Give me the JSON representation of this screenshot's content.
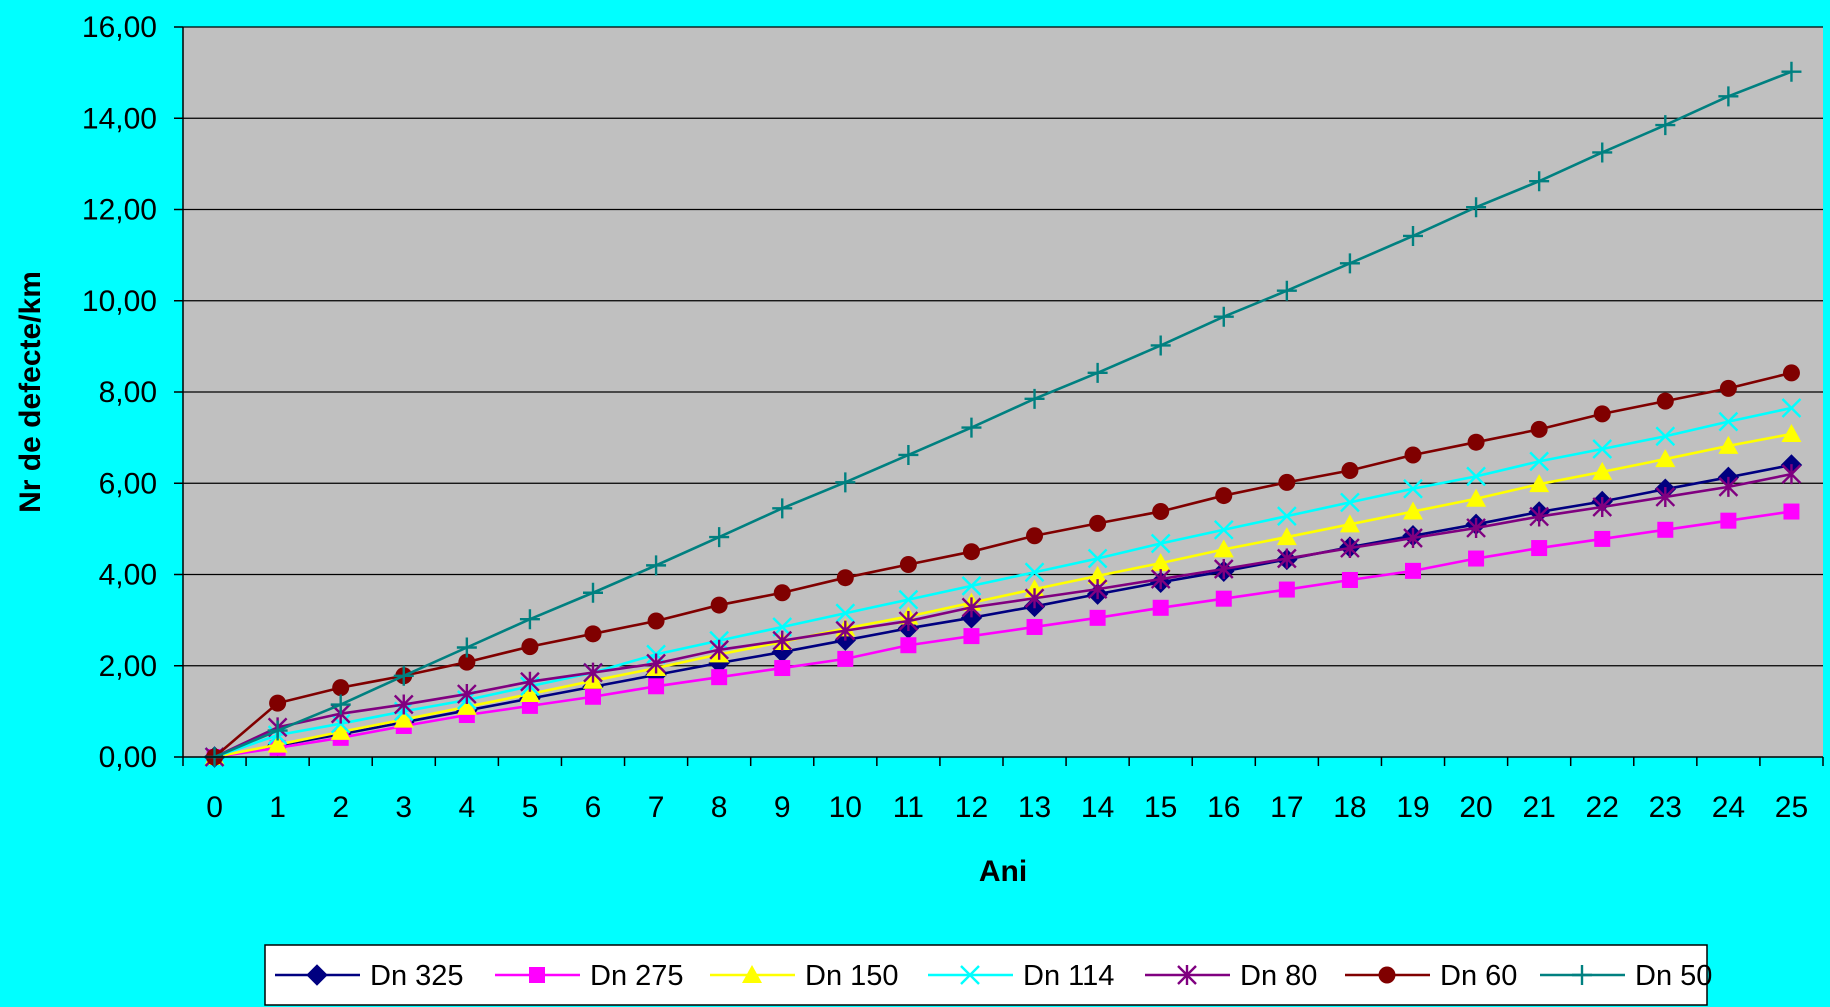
{
  "chart_data": {
    "type": "line",
    "title": "",
    "xlabel": "Ani",
    "ylabel": "Nr de defecte/km",
    "categories": [
      "0",
      "1",
      "2",
      "3",
      "4",
      "5",
      "6",
      "7",
      "8",
      "9",
      "10",
      "11",
      "12",
      "13",
      "14",
      "15",
      "16",
      "17",
      "18",
      "19",
      "20",
      "21",
      "22",
      "23",
      "24",
      "25"
    ],
    "ylim": [
      0,
      16
    ],
    "yticks": [
      "0,00",
      "2,00",
      "4,00",
      "6,00",
      "8,00",
      "10,00",
      "12,00",
      "14,00",
      "16,00"
    ],
    "grid": "horizontal",
    "legend_position": "bottom",
    "plot_background": "#C0C0C0",
    "page_background": "#00FFFF",
    "series": [
      {
        "name": "Dn 325",
        "color": "#000080",
        "marker": "diamond",
        "values": [
          0,
          0.25,
          0.5,
          0.76,
          1.02,
          1.28,
          1.54,
          1.8,
          2.06,
          2.3,
          2.56,
          2.82,
          3.05,
          3.3,
          3.57,
          3.83,
          4.07,
          4.33,
          4.6,
          4.85,
          5.1,
          5.37,
          5.6,
          5.87,
          6.13,
          6.4
        ]
      },
      {
        "name": "Dn 275",
        "color": "#FF00FF",
        "marker": "square",
        "values": [
          0,
          0.2,
          0.42,
          0.68,
          0.92,
          1.12,
          1.32,
          1.55,
          1.75,
          1.95,
          2.15,
          2.45,
          2.65,
          2.85,
          3.05,
          3.27,
          3.47,
          3.67,
          3.88,
          4.08,
          4.35,
          4.58,
          4.78,
          4.98,
          5.18,
          5.38
        ]
      },
      {
        "name": "Dn 150",
        "color": "#FFFF00",
        "marker": "triangle",
        "values": [
          0,
          0.27,
          0.55,
          0.82,
          1.1,
          1.38,
          1.67,
          1.95,
          2.25,
          2.52,
          2.82,
          3.08,
          3.38,
          3.68,
          3.97,
          4.25,
          4.55,
          4.82,
          5.1,
          5.38,
          5.66,
          5.98,
          6.25,
          6.53,
          6.82,
          7.08
        ]
      },
      {
        "name": "Dn 114",
        "color": "#00FFFF",
        "marker": "x",
        "values": [
          0,
          0.48,
          0.73,
          1.0,
          1.25,
          1.55,
          1.85,
          2.25,
          2.55,
          2.85,
          3.15,
          3.45,
          3.75,
          4.05,
          4.35,
          4.68,
          4.98,
          5.28,
          5.58,
          5.88,
          6.15,
          6.48,
          6.75,
          7.03,
          7.35,
          7.65
        ]
      },
      {
        "name": "Dn 80",
        "color": "#800080",
        "marker": "star",
        "values": [
          0,
          0.65,
          0.95,
          1.15,
          1.38,
          1.65,
          1.85,
          2.05,
          2.35,
          2.55,
          2.77,
          2.98,
          3.28,
          3.48,
          3.68,
          3.9,
          4.12,
          4.35,
          4.58,
          4.8,
          5.02,
          5.27,
          5.48,
          5.7,
          5.92,
          6.2
        ]
      },
      {
        "name": "Dn 60",
        "color": "#800000",
        "marker": "circle",
        "values": [
          0,
          1.18,
          1.52,
          1.78,
          2.08,
          2.42,
          2.7,
          2.98,
          3.33,
          3.6,
          3.93,
          4.22,
          4.5,
          4.85,
          5.12,
          5.38,
          5.73,
          6.02,
          6.28,
          6.62,
          6.9,
          7.18,
          7.52,
          7.8,
          8.08,
          8.42
        ]
      },
      {
        "name": "Dn 50",
        "color": "#008080",
        "marker": "plus",
        "values": [
          0,
          0.58,
          1.15,
          1.78,
          2.4,
          3.02,
          3.6,
          4.2,
          4.82,
          5.45,
          6.02,
          6.62,
          7.22,
          7.85,
          8.42,
          9.02,
          9.65,
          10.22,
          10.82,
          11.42,
          12.05,
          12.62,
          13.25,
          13.85,
          14.48,
          15.02
        ]
      }
    ]
  }
}
